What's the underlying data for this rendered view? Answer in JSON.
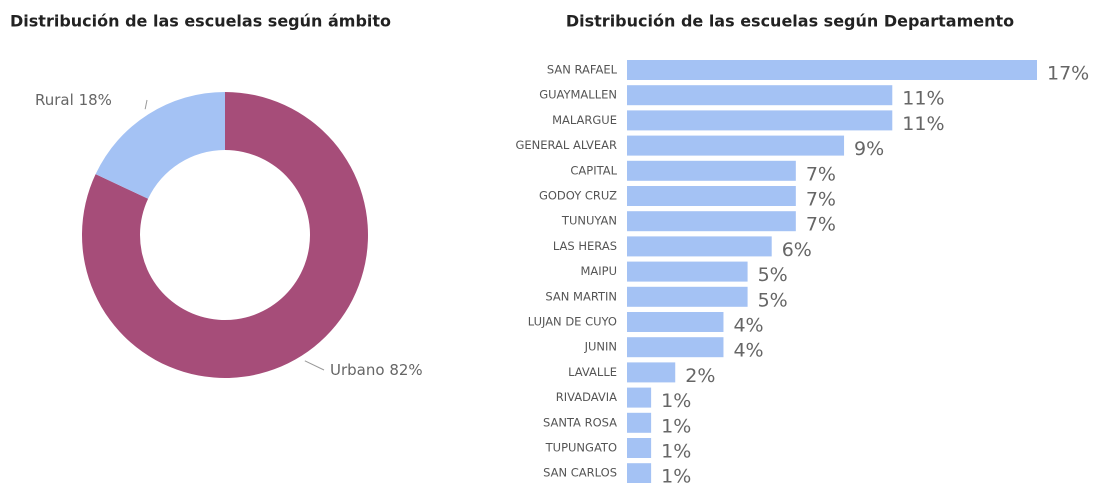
{
  "chart_data": [
    {
      "type": "donut",
      "title": "Distribución de las escuelas según ámbito",
      "categories": [
        "Rural",
        "Urbano"
      ],
      "values": [
        18,
        82
      ],
      "value_labels": [
        "18%",
        "82%"
      ],
      "colors": [
        "#a4c2f4",
        "#a64d79"
      ]
    },
    {
      "type": "hbar",
      "title": "Distribución de las escuelas según Departamento",
      "categories": [
        "SAN RAFAEL",
        "GUAYMALLEN",
        "MALARGUE",
        "GENERAL ALVEAR",
        "CAPITAL",
        "GODOY CRUZ",
        "TUNUYAN",
        "LAS HERAS",
        "MAIPU",
        "SAN MARTIN",
        "LUJAN DE CUYO",
        "JUNIN",
        "LAVALLE",
        "RIVADAVIA",
        "SANTA ROSA",
        "TUPUNGATO",
        "SAN CARLOS"
      ],
      "values": [
        17,
        11,
        11,
        9,
        7,
        7,
        7,
        6,
        5,
        5,
        4,
        4,
        2,
        1,
        1,
        1,
        1
      ],
      "value_labels": [
        "17%",
        "11%",
        "11%",
        "9%",
        "7%",
        "7%",
        "7%",
        "6%",
        "5%",
        "5%",
        "4%",
        "4%",
        "2%",
        "1%",
        "1%",
        "1%",
        "1%"
      ],
      "color": "#a4c2f4"
    }
  ]
}
